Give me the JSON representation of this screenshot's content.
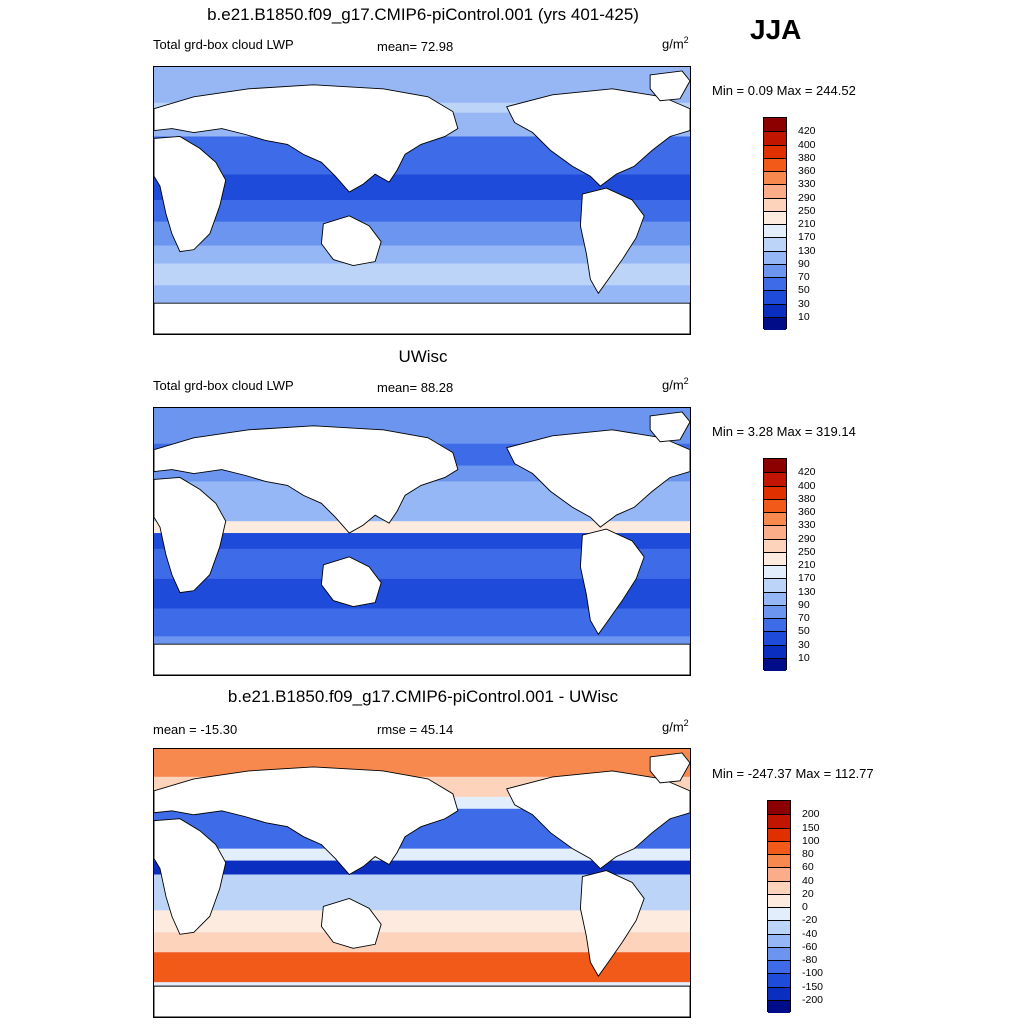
{
  "season_label": "JJA",
  "panels": [
    {
      "title": "b.e21.B1850.f09_g17.CMIP6-piControl.001 (yrs 401-425)",
      "left_label": "Total grd-box cloud LWP",
      "center_label": "mean=  72.98",
      "unit_base": "g/m",
      "unit_sup": "2",
      "range_label": "Min =   0.09 Max = 244.52",
      "style": "abs1"
    },
    {
      "title": "UWisc",
      "left_label": "Total grd-box cloud LWP",
      "center_label": "mean=  88.28",
      "unit_base": "g/m",
      "unit_sup": "2",
      "range_label": "Min =   3.28 Max = 319.14",
      "style": "abs2"
    },
    {
      "title": "b.e21.B1850.f09_g17.CMIP6-piControl.001 - UWisc",
      "left_label": "mean = -15.30",
      "center_label": "rmse =  45.14",
      "unit_base": "g/m",
      "unit_sup": "2",
      "range_label": "Min = -247.37 Max = 112.77",
      "style": "diff"
    }
  ],
  "legends": {
    "absolute": {
      "ticks": [
        "420",
        "400",
        "380",
        "360",
        "330",
        "290",
        "250",
        "210",
        "170",
        "130",
        "90",
        "70",
        "50",
        "30",
        "10"
      ],
      "colors": [
        "#8c0000",
        "#c21500",
        "#e03000",
        "#f25a1a",
        "#f7894e",
        "#fbac88",
        "#fdd3bc",
        "#fdebe0",
        "#e2eefc",
        "#bcd4f8",
        "#95b7f5",
        "#6b95ef",
        "#3e6be8",
        "#1f4bdb",
        "#0a2fc0",
        "#000c88"
      ]
    },
    "difference": {
      "ticks": [
        "200",
        "150",
        "100",
        "80",
        "60",
        "40",
        "20",
        "0",
        "-20",
        "-40",
        "-60",
        "-80",
        "-100",
        "-150",
        "-200"
      ],
      "colors": [
        "#8c0000",
        "#c21500",
        "#e03000",
        "#f25a1a",
        "#f7894e",
        "#fbac88",
        "#fdd3bc",
        "#fdebe0",
        "#e2eefc",
        "#bcd4f8",
        "#95b7f5",
        "#6b95ef",
        "#3e6be8",
        "#1f4bdb",
        "#0a2fc0",
        "#000c88"
      ]
    }
  }
}
